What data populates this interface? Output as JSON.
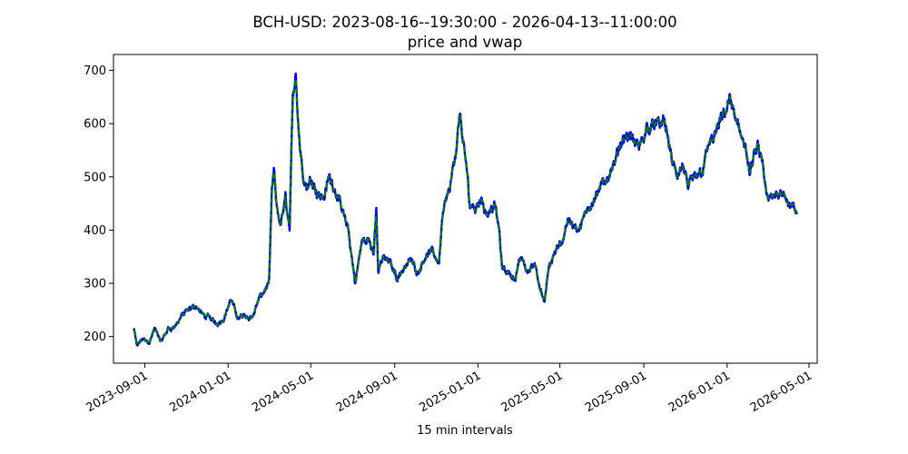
{
  "chart_data": {
    "type": "line",
    "title": "BCH-USD: 2023-08-16--19:30:00 - 2026-04-13--11:00:00",
    "subtitle": "price and vwap",
    "xlabel": "15 min intervals",
    "ylabel": "",
    "x_range": [
      "2023-08-16",
      "2026-04-13"
    ],
    "xlim": [
      "2023-07-17",
      "2026-05-13"
    ],
    "ylim": [
      150,
      730
    ],
    "y_ticks": [
      200,
      300,
      400,
      500,
      600,
      700
    ],
    "y_tick_labels": [
      "200",
      "300",
      "400",
      "500",
      "600",
      "700"
    ],
    "x_ticks": [
      "2023-09-01",
      "2024-01-01",
      "2024-05-01",
      "2024-09-01",
      "2025-01-01",
      "2025-05-01",
      "2025-09-01",
      "2026-01-01",
      "2026-05-01"
    ],
    "x_tick_labels": [
      "2023-09-01",
      "2024-01-01",
      "2024-05-01",
      "2024-09-01",
      "2025-01-01",
      "2025-05-01",
      "2025-09-01",
      "2026-01-01",
      "2026-05-01"
    ],
    "grid": false,
    "legend": false,
    "series": [
      {
        "role": "price",
        "color": "#0000ff",
        "points": [
          [
            "2023-08-16",
            215
          ],
          [
            "2023-08-20",
            182
          ],
          [
            "2023-08-28",
            195
          ],
          [
            "2023-09-08",
            190
          ],
          [
            "2023-09-15",
            215
          ],
          [
            "2023-09-25",
            190
          ],
          [
            "2023-10-05",
            215
          ],
          [
            "2023-10-15",
            218
          ],
          [
            "2023-10-25",
            240
          ],
          [
            "2023-11-05",
            250
          ],
          [
            "2023-11-15",
            258
          ],
          [
            "2023-11-25",
            240
          ],
          [
            "2023-12-05",
            235
          ],
          [
            "2023-12-15",
            225
          ],
          [
            "2023-12-25",
            232
          ],
          [
            "2024-01-05",
            270
          ],
          [
            "2024-01-15",
            235
          ],
          [
            "2024-01-25",
            240
          ],
          [
            "2024-02-05",
            235
          ],
          [
            "2024-02-15",
            270
          ],
          [
            "2024-02-25",
            290
          ],
          [
            "2024-03-01",
            300
          ],
          [
            "2024-03-05",
            470
          ],
          [
            "2024-03-08",
            510
          ],
          [
            "2024-03-12",
            440
          ],
          [
            "2024-03-18",
            410
          ],
          [
            "2024-03-25",
            460
          ],
          [
            "2024-03-31",
            400
          ],
          [
            "2024-04-03",
            560
          ],
          [
            "2024-04-05",
            650
          ],
          [
            "2024-04-09",
            700
          ],
          [
            "2024-04-12",
            620
          ],
          [
            "2024-04-15",
            560
          ],
          [
            "2024-04-20",
            500
          ],
          [
            "2024-04-25",
            480
          ],
          [
            "2024-05-03",
            500
          ],
          [
            "2024-05-10",
            470
          ],
          [
            "2024-05-20",
            460
          ],
          [
            "2024-05-28",
            500
          ],
          [
            "2024-06-05",
            480
          ],
          [
            "2024-06-15",
            440
          ],
          [
            "2024-06-25",
            400
          ],
          [
            "2024-07-05",
            300
          ],
          [
            "2024-07-15",
            380
          ],
          [
            "2024-07-25",
            380
          ],
          [
            "2024-08-01",
            360
          ],
          [
            "2024-08-05",
            440
          ],
          [
            "2024-08-08",
            320
          ],
          [
            "2024-08-15",
            350
          ],
          [
            "2024-08-25",
            340
          ],
          [
            "2024-09-05",
            310
          ],
          [
            "2024-09-15",
            330
          ],
          [
            "2024-09-25",
            345
          ],
          [
            "2024-10-05",
            320
          ],
          [
            "2024-10-15",
            350
          ],
          [
            "2024-10-25",
            360
          ],
          [
            "2024-11-05",
            340
          ],
          [
            "2024-11-10",
            430
          ],
          [
            "2024-11-15",
            460
          ],
          [
            "2024-11-20",
            470
          ],
          [
            "2024-11-25",
            510
          ],
          [
            "2024-11-30",
            540
          ],
          [
            "2024-12-05",
            630
          ],
          [
            "2024-12-10",
            560
          ],
          [
            "2024-12-15",
            520
          ],
          [
            "2024-12-20",
            450
          ],
          [
            "2024-12-28",
            440
          ],
          [
            "2025-01-05",
            460
          ],
          [
            "2025-01-15",
            430
          ],
          [
            "2025-01-25",
            450
          ],
          [
            "2025-02-01",
            400
          ],
          [
            "2025-02-05",
            330
          ],
          [
            "2025-02-15",
            320
          ],
          [
            "2025-02-25",
            310
          ],
          [
            "2025-03-05",
            350
          ],
          [
            "2025-03-15",
            320
          ],
          [
            "2025-03-25",
            340
          ],
          [
            "2025-04-01",
            300
          ],
          [
            "2025-04-08",
            260
          ],
          [
            "2025-04-15",
            330
          ],
          [
            "2025-04-25",
            360
          ],
          [
            "2025-05-05",
            380
          ],
          [
            "2025-05-12",
            420
          ],
          [
            "2025-05-20",
            410
          ],
          [
            "2025-05-30",
            400
          ],
          [
            "2025-06-10",
            440
          ],
          [
            "2025-06-20",
            460
          ],
          [
            "2025-06-30",
            480
          ],
          [
            "2025-07-10",
            500
          ],
          [
            "2025-07-20",
            520
          ],
          [
            "2025-07-28",
            560
          ],
          [
            "2025-08-05",
            580
          ],
          [
            "2025-08-15",
            570
          ],
          [
            "2025-08-25",
            555
          ],
          [
            "2025-09-05",
            590
          ],
          [
            "2025-09-15",
            600
          ],
          [
            "2025-09-25",
            595
          ],
          [
            "2025-10-01",
            610
          ],
          [
            "2025-10-08",
            560
          ],
          [
            "2025-10-12",
            530
          ],
          [
            "2025-10-20",
            500
          ],
          [
            "2025-10-28",
            520
          ],
          [
            "2025-11-05",
            480
          ],
          [
            "2025-11-15",
            500
          ],
          [
            "2025-11-25",
            510
          ],
          [
            "2025-12-05",
            560
          ],
          [
            "2025-12-15",
            580
          ],
          [
            "2025-12-25",
            610
          ],
          [
            "2026-01-01",
            630
          ],
          [
            "2026-01-05",
            650
          ],
          [
            "2026-01-10",
            620
          ],
          [
            "2026-01-15",
            600
          ],
          [
            "2026-01-22",
            580
          ],
          [
            "2026-01-28",
            560
          ],
          [
            "2026-02-03",
            500
          ],
          [
            "2026-02-08",
            530
          ],
          [
            "2026-02-15",
            560
          ],
          [
            "2026-02-22",
            520
          ],
          [
            "2026-02-28",
            460
          ],
          [
            "2026-03-08",
            460
          ],
          [
            "2026-03-15",
            470
          ],
          [
            "2026-03-25",
            475
          ],
          [
            "2026-04-01",
            450
          ],
          [
            "2026-04-08",
            440
          ],
          [
            "2026-04-13",
            430
          ]
        ]
      },
      {
        "role": "vwap",
        "color": "#008000",
        "points": "derived from price series"
      }
    ]
  }
}
